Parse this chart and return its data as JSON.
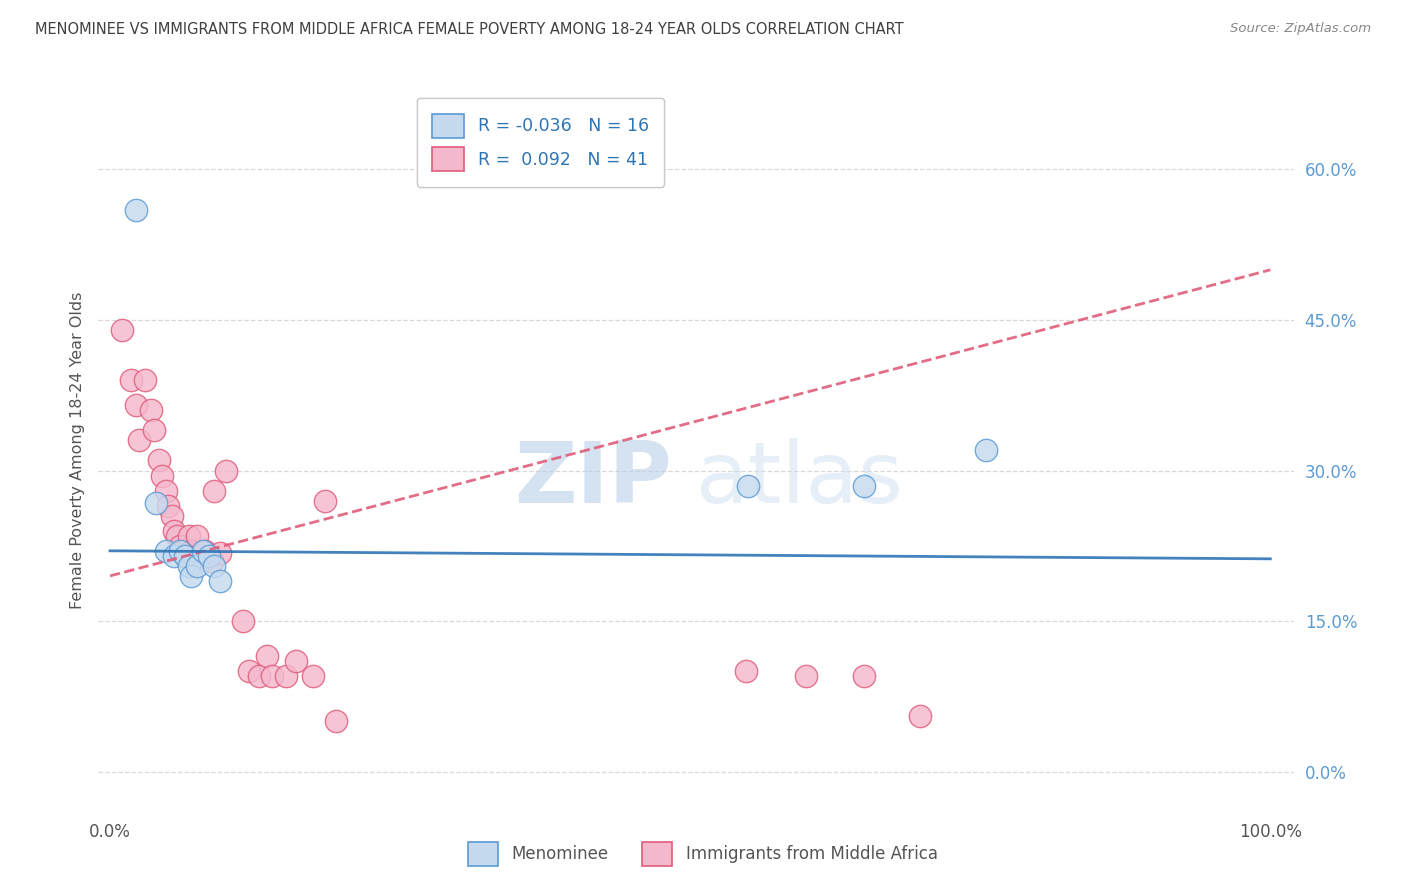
{
  "title": "MENOMINEE VS IMMIGRANTS FROM MIDDLE AFRICA FEMALE POVERTY AMONG 18-24 YEAR OLDS CORRELATION CHART",
  "source": "Source: ZipAtlas.com",
  "ylabel": "Female Poverty Among 18-24 Year Olds",
  "xlim": [
    -0.01,
    1.02
  ],
  "ylim": [
    -0.04,
    0.68
  ],
  "yticks": [
    0.0,
    0.15,
    0.3,
    0.45,
    0.6
  ],
  "ytick_labels": [
    "0.0%",
    "15.0%",
    "30.0%",
    "45.0%",
    "60.0%"
  ],
  "xtick_labels": [
    "0.0%",
    "100.0%"
  ],
  "series": [
    {
      "name": "Menominee",
      "color": "#c5daef",
      "edge_color": "#5b9bd5",
      "R": -0.036,
      "N": 16,
      "line_color": "#2e75b6",
      "line_style": "solid",
      "x": [
        0.022,
        0.04,
        0.048,
        0.055,
        0.06,
        0.065,
        0.068,
        0.07,
        0.075,
        0.08,
        0.085,
        0.09,
        0.095,
        0.55,
        0.65,
        0.755
      ],
      "y": [
        0.56,
        0.268,
        0.22,
        0.215,
        0.22,
        0.215,
        0.205,
        0.195,
        0.205,
        0.22,
        0.215,
        0.205,
        0.19,
        0.285,
        0.285,
        0.32
      ],
      "trend_x": [
        0.0,
        1.0
      ],
      "trend_y": [
        0.22,
        0.212
      ]
    },
    {
      "name": "Immigrants from Middle Africa",
      "color": "#f4b8cc",
      "edge_color": "#e05c7a",
      "R": 0.092,
      "N": 41,
      "line_color": "#e05c7a",
      "line_style": "dashed",
      "x": [
        0.01,
        0.018,
        0.022,
        0.025,
        0.03,
        0.035,
        0.038,
        0.042,
        0.045,
        0.048,
        0.05,
        0.053,
        0.055,
        0.058,
        0.06,
        0.063,
        0.065,
        0.068,
        0.07,
        0.075,
        0.078,
        0.082,
        0.085,
        0.088,
        0.09,
        0.095,
        0.1,
        0.115,
        0.12,
        0.128,
        0.135,
        0.14,
        0.152,
        0.16,
        0.175,
        0.185,
        0.195,
        0.548,
        0.6,
        0.65,
        0.698
      ],
      "y": [
        0.44,
        0.39,
        0.365,
        0.33,
        0.39,
        0.36,
        0.34,
        0.31,
        0.295,
        0.28,
        0.265,
        0.255,
        0.24,
        0.235,
        0.225,
        0.22,
        0.215,
        0.235,
        0.22,
        0.235,
        0.215,
        0.22,
        0.215,
        0.21,
        0.28,
        0.218,
        0.3,
        0.15,
        0.1,
        0.095,
        0.115,
        0.095,
        0.095,
        0.11,
        0.095,
        0.27,
        0.05,
        0.1,
        0.095,
        0.095,
        0.055
      ],
      "trend_x": [
        0.0,
        1.0
      ],
      "trend_y": [
        0.195,
        0.5
      ]
    }
  ],
  "watermark_zip": "ZIP",
  "watermark_atlas": "atlas",
  "bg_color": "#ffffff",
  "grid_color": "#d0d0d0",
  "title_color": "#404040",
  "source_color": "#888888",
  "ytick_color": "#5b9bd5",
  "xtick_color": "#555555",
  "label_color": "#555555",
  "legend_r_color": "#2e75b6"
}
